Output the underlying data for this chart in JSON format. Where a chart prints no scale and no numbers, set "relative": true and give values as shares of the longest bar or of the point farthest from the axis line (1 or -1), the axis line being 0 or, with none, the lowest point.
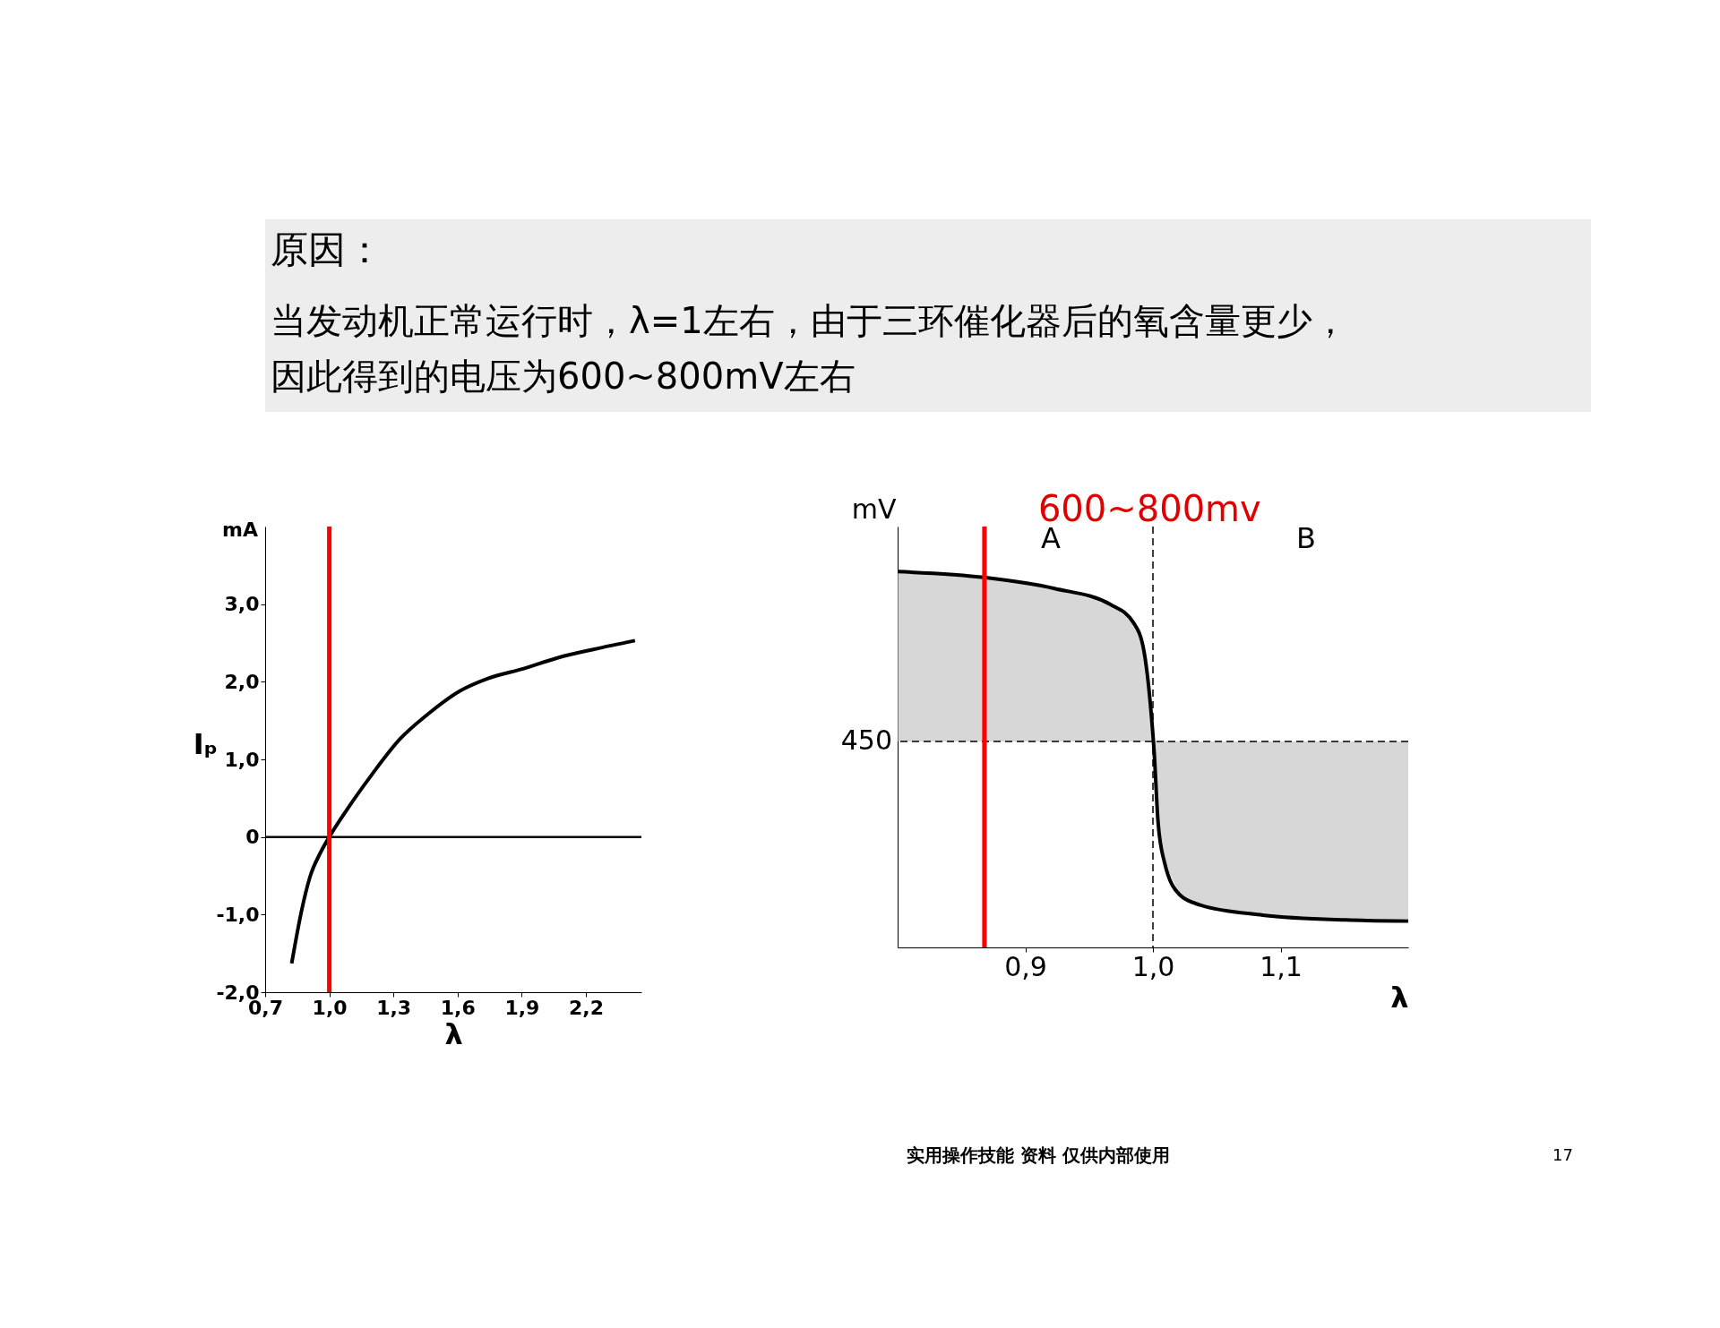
{
  "chart_data": [
    {
      "type": "other",
      "title": "原因：",
      "annotations": [
        "当发动机正常运行时，λ=1左右，由于三环催化器后的氧含量更少，",
        "因此得到的电压为600~800mV左右"
      ]
    },
    {
      "type": "line",
      "xlabel": "λ",
      "ylabel": "Iₚ",
      "annotations": [
        "mA"
      ],
      "xlim": [
        0.7,
        2.46
      ],
      "ylim": [
        -2,
        4
      ],
      "xticks": [
        {
          "value": 0.7,
          "label": "0,7"
        },
        {
          "value": 1.0,
          "label": "1,0"
        },
        {
          "value": 1.3,
          "label": "1,3"
        },
        {
          "value": 1.6,
          "label": "1,6"
        },
        {
          "value": 1.9,
          "label": "1,9"
        },
        {
          "value": 2.2,
          "label": "2,2"
        }
      ],
      "yticks": [
        {
          "value": -2,
          "label": "-2,0"
        },
        {
          "value": -1,
          "label": "-1,0"
        },
        0,
        {
          "value": 1,
          "label": "1,0"
        },
        {
          "value": 2,
          "label": "2,0"
        },
        {
          "value": 3,
          "label": "3,0"
        }
      ],
      "series": [
        {
          "color": "#000000",
          "x": [
            0.824,
            0.868,
            0.909,
            0.959,
            1.0,
            1.082,
            1.198,
            1.33,
            1.46,
            1.61,
            1.74,
            1.91,
            2.07,
            2.24,
            2.43
          ],
          "values": [
            -1.63,
            -0.98,
            -0.52,
            -0.2,
            0,
            0.35,
            0.8,
            1.26,
            1.58,
            1.88,
            2.04,
            2.17,
            2.31,
            2.42,
            2.53
          ]
        }
      ],
      "ref_lines": [
        {
          "axis": "y",
          "value": 0,
          "color": "#000000"
        },
        {
          "axis": "x",
          "value": 1.0,
          "color": "#ff0000"
        }
      ],
      "grid": false
    },
    {
      "type": "line",
      "relative": true,
      "xlabel": "λ",
      "ylabel": "mV",
      "xlim": [
        0.8,
        1.2
      ],
      "xticks": [
        {
          "value": 0.9,
          "label": "0,9"
        },
        {
          "value": 1.0,
          "label": "1,0"
        },
        {
          "value": 1.1,
          "label": "1,1"
        }
      ],
      "series": [
        {
          "color": "#000000",
          "x": [
            0.8,
            0.869,
            0.923,
            0.967,
            0.985,
            0.993,
            0.998,
            1.001,
            1.004,
            1.009,
            1.021,
            1.037,
            1.086,
            1.151,
            1.2
          ],
          "values": [
            1.0,
            0.984,
            0.955,
            0.912,
            0.863,
            0.788,
            0.647,
            0.518,
            0.334,
            0.227,
            0.14,
            0.113,
            0.086,
            0.073,
            0.07
          ],
          "lower": [
            0.548,
            0.548,
            0.548,
            0.548,
            0.548,
            0.548,
            0.548,
            0.548,
            0.548,
            0.548,
            0.548,
            0.548,
            0.548,
            0.548,
            0.548
          ],
          "upper": [
            1.0,
            0.984,
            0.955,
            0.912,
            0.863,
            0.788,
            0.647,
            0.518,
            0.334,
            0.227,
            0.14,
            0.113,
            0.086,
            0.073,
            0.07
          ]
        }
      ],
      "ref_lines": [
        {
          "axis": "y",
          "value": 0.548,
          "color": "#000000",
          "line_style": "dashed"
        },
        {
          "axis": "x",
          "value": 1.0,
          "color": "#000000",
          "line_style": "dashed"
        },
        {
          "axis": "x",
          "value": 0.868,
          "color": "#ff0000"
        }
      ],
      "annotations": [
        {
          "text": "600~800mv",
          "x": 0.868,
          "y": 0.984
        },
        "A",
        "B",
        "450"
      ],
      "grid": false
    },
    {
      "type": "other",
      "annotations": [
        "实用操作技能 资料 仅供内部使用",
        "17"
      ]
    }
  ]
}
